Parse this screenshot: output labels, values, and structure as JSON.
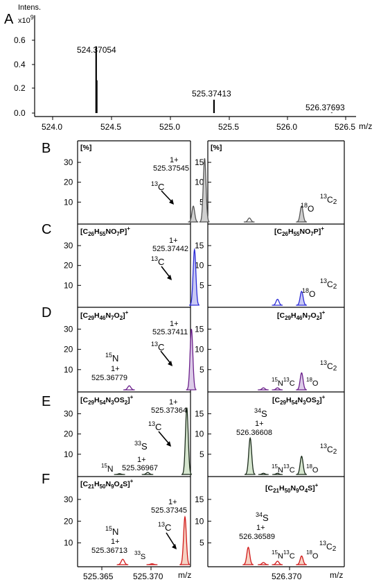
{
  "panel_labels": [
    "A",
    "B",
    "C",
    "D",
    "E",
    "F"
  ],
  "top": {
    "ylabel_lines": [
      "Intens.",
      "x10"
    ],
    "ylabel_exp": "9",
    "x_ticks": [
      "524.0",
      "524.5",
      "525.0",
      "525.5",
      "526.0",
      "526.5"
    ],
    "y_ticks": [
      "0.0",
      "0.2",
      "0.4",
      "0.6"
    ],
    "xlabel": "m/z",
    "peak_labels": [
      "524.37054",
      "525.37413",
      "526.37693"
    ]
  },
  "left_y_ticks": [
    "10",
    "20",
    "30"
  ],
  "right_y_ticks": [
    "5",
    "10",
    "15"
  ],
  "pct_label": "[%]",
  "bottom_x_ticks": [
    "525.365",
    "525.370",
    "526.370"
  ],
  "bottom_xlabel": "m/z",
  "formulas": {
    "C": {
      "sym": "[C",
      "sub1": "26",
      "mid1": "H",
      "sub2": "55",
      "mid2": "NO",
      "sub3": "7",
      "end": "P]",
      "sup": "+"
    },
    "D": {
      "sym": "[C",
      "sub1": "29",
      "mid1": "H",
      "sub2": "46",
      "mid2": "N",
      "sub3": "7",
      "mid3": "O",
      "sub4": "2",
      "end": "]",
      "sup": "+"
    },
    "E": {
      "sym": "[C",
      "sub1": "29",
      "mid1": "H",
      "sub2": "54",
      "mid2": "N",
      "sub3": "3",
      "mid3": "OS",
      "sub4": "2",
      "end": "]",
      "sup": "+"
    },
    "F": {
      "sym": "[C",
      "sub1": "21",
      "mid1": "H",
      "sub2": "50",
      "mid2": "N",
      "sub3": "9",
      "mid3": "O",
      "sub4": "4",
      "end": "S]",
      "sup": "+"
    }
  },
  "annotations": {
    "charge": "1+",
    "c13": {
      "mass": "13",
      "el": "C"
    },
    "c13x2": {
      "mass": "13",
      "el": "C",
      "sub": "2"
    },
    "o18": {
      "mass": "18",
      "el": "O"
    },
    "n15": {
      "mass": "15",
      "el": "N"
    },
    "s33": {
      "mass": "33",
      "el": "S"
    },
    "s34": {
      "mass": "34",
      "el": "S"
    },
    "B_mass": "525.37545",
    "C_mass": "525.37442",
    "D_mass": "525.37411",
    "D_n15_mass": "525.36779",
    "E_mass": "525.37364",
    "E_s33_mass": "525.36967",
    "E_s34_mass": "526.36608",
    "F_mass": "525.37345",
    "F_n15_mass": "525.36713",
    "F_s34_mass": "526.36589"
  },
  "colors": {
    "B": "#555555",
    "C": "#2a2ad6",
    "D": "#6a1e8a",
    "E": "#1a2a1a",
    "F": "#d11a1a",
    "Bfill": "#cfcfcf",
    "Cfill": "#c9c9f4",
    "Dfill": "#dccbe8",
    "Efill": "#d6e6cf",
    "Ffill": "#f6d2c4"
  },
  "chart_data": {
    "type": "line",
    "title": "",
    "xlabel": "m/z",
    "ylabel": "Intens. x10^9",
    "xlim": [
      524.0,
      526.6
    ],
    "ylim": [
      0.0,
      0.72
    ],
    "series": [
      {
        "x": [
          524.37054,
          524.3755,
          525.37413,
          526.37693
        ],
        "y": [
          0.55,
          0.27,
          0.11,
          0.004
        ]
      }
    ],
    "panels": [
      {
        "label": "B",
        "left_peaks": [
          {
            "mz": 525.37545,
            "pct": 32
          },
          {
            "mz": 525.3743,
            "pct": 8
          }
        ],
        "right_peaks": [
          {
            "mz": 526.366,
            "pct": 1
          },
          {
            "mz": 526.3712,
            "pct": 4
          }
        ]
      },
      {
        "label": "C",
        "left_peaks": [
          {
            "mz": 525.37442,
            "pct": 28
          }
        ],
        "right_peaks": [
          {
            "mz": 526.3688,
            "pct": 1.5
          },
          {
            "mz": 526.3712,
            "pct": 3.5
          }
        ]
      },
      {
        "label": "D",
        "left_peaks": [
          {
            "mz": 525.36779,
            "pct": 2
          },
          {
            "mz": 525.37411,
            "pct": 30
          }
        ],
        "right_peaks": [
          {
            "mz": 526.3674,
            "pct": 0.5
          },
          {
            "mz": 526.3688,
            "pct": 0.5
          },
          {
            "mz": 526.3712,
            "pct": 4.2
          }
        ]
      },
      {
        "label": "E",
        "left_peaks": [
          {
            "mz": 525.3668,
            "pct": 0.4
          },
          {
            "mz": 525.36967,
            "pct": 1
          },
          {
            "mz": 525.37364,
            "pct": 33
          }
        ],
        "right_peaks": [
          {
            "mz": 526.36608,
            "pct": 9
          },
          {
            "mz": 526.3674,
            "pct": 0.3
          },
          {
            "mz": 526.3688,
            "pct": 0.3
          },
          {
            "mz": 526.3712,
            "pct": 4.5
          }
        ]
      },
      {
        "label": "F",
        "left_peaks": [
          {
            "mz": 525.36713,
            "pct": 2.5
          },
          {
            "mz": 525.3701,
            "pct": 0.4
          },
          {
            "mz": 525.37345,
            "pct": 22
          }
        ],
        "right_peaks": [
          {
            "mz": 526.36589,
            "pct": 4
          },
          {
            "mz": 526.3674,
            "pct": 0.5
          },
          {
            "mz": 526.3688,
            "pct": 0.8
          },
          {
            "mz": 526.3712,
            "pct": 2
          }
        ]
      }
    ]
  }
}
